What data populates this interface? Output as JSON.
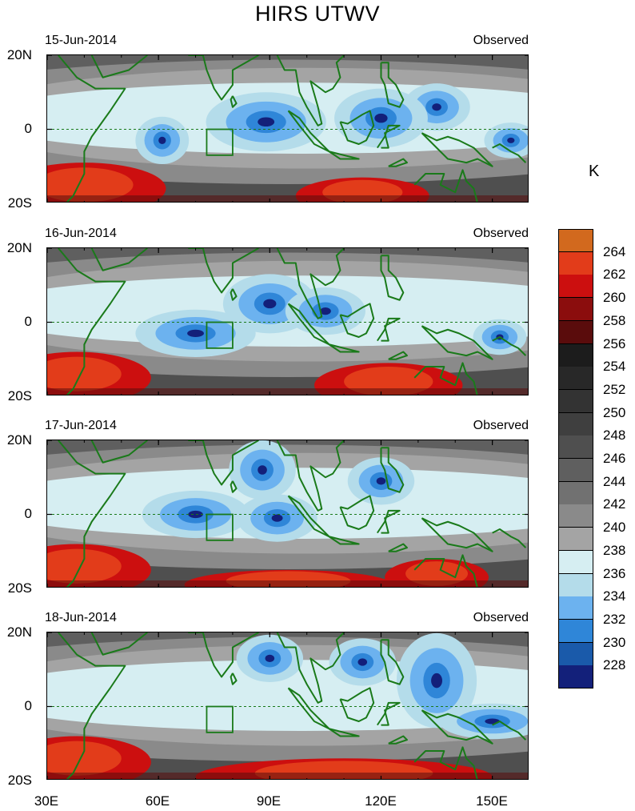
{
  "title": "HIRS UTWV",
  "units": "K",
  "tag": "Observed",
  "lat_labels": [
    "20N",
    "0",
    "20S"
  ],
  "lon_labels": [
    "30E",
    "60E",
    "90E",
    "120E",
    "150E"
  ],
  "map": {
    "lon_range": [
      30,
      160
    ],
    "lat_range": [
      -20,
      20
    ],
    "lon_ticks": [
      30,
      60,
      90,
      120,
      150
    ],
    "lat_ticks": [
      20,
      0,
      -20
    ]
  },
  "panels": [
    {
      "date": "15-Jun-2014",
      "moist_cores": [
        [
          61,
          -3,
          4,
          4
        ],
        [
          89,
          2,
          9,
          5
        ],
        [
          135,
          6,
          5,
          4
        ],
        [
          155,
          -3,
          4,
          3
        ],
        [
          120,
          3,
          7,
          5
        ]
      ],
      "dry": [
        [
          40,
          -16,
          22,
          7
        ],
        [
          115,
          -18,
          18,
          5
        ]
      ]
    },
    {
      "date": "16-Jun-2014",
      "moist_cores": [
        [
          90,
          5,
          7,
          5
        ],
        [
          70,
          -3,
          9,
          4
        ],
        [
          105,
          3,
          6,
          4
        ],
        [
          152,
          -4,
          4,
          3
        ]
      ],
      "dry": [
        [
          38,
          -15,
          20,
          7
        ],
        [
          122,
          -17,
          20,
          6
        ]
      ]
    },
    {
      "date": "17-Jun-2014",
      "moist_cores": [
        [
          88,
          12,
          5,
          5
        ],
        [
          120,
          9,
          5,
          4
        ],
        [
          70,
          0,
          8,
          4
        ],
        [
          92,
          -1,
          6,
          4
        ]
      ],
      "dry": [
        [
          38,
          -15,
          20,
          7
        ],
        [
          95,
          -19,
          28,
          4
        ],
        [
          135,
          -17,
          14,
          5
        ]
      ]
    },
    {
      "date": "18-Jun-2014",
      "moist_cores": [
        [
          135,
          7,
          6,
          8
        ],
        [
          90,
          13,
          5,
          4
        ],
        [
          115,
          12,
          5,
          4
        ],
        [
          150,
          -4,
          8,
          3
        ]
      ],
      "dry": [
        [
          38,
          -15,
          20,
          7
        ],
        [
          110,
          -19,
          40,
          5
        ]
      ]
    }
  ],
  "colorbar": {
    "levels": [
      264,
      262,
      260,
      258,
      256,
      254,
      252,
      250,
      248,
      246,
      244,
      242,
      240,
      238,
      236,
      234,
      232,
      230,
      228
    ],
    "colors": [
      "#d2691e",
      "#e23c1a",
      "#cc0f0f",
      "#8b0d0d",
      "#5a0c0c",
      "#1c1c1c",
      "#282828",
      "#333333",
      "#3f3f3f",
      "#4f4f4f",
      "#5f5f5f",
      "#717171",
      "#8a8a8a",
      "#a4a4a4",
      "#d6eef2",
      "#b4dcea",
      "#6cb2ef",
      "#2f86d8",
      "#1a5aaa",
      "#13207a"
    ]
  },
  "coast_color": "#1a7a1a"
}
